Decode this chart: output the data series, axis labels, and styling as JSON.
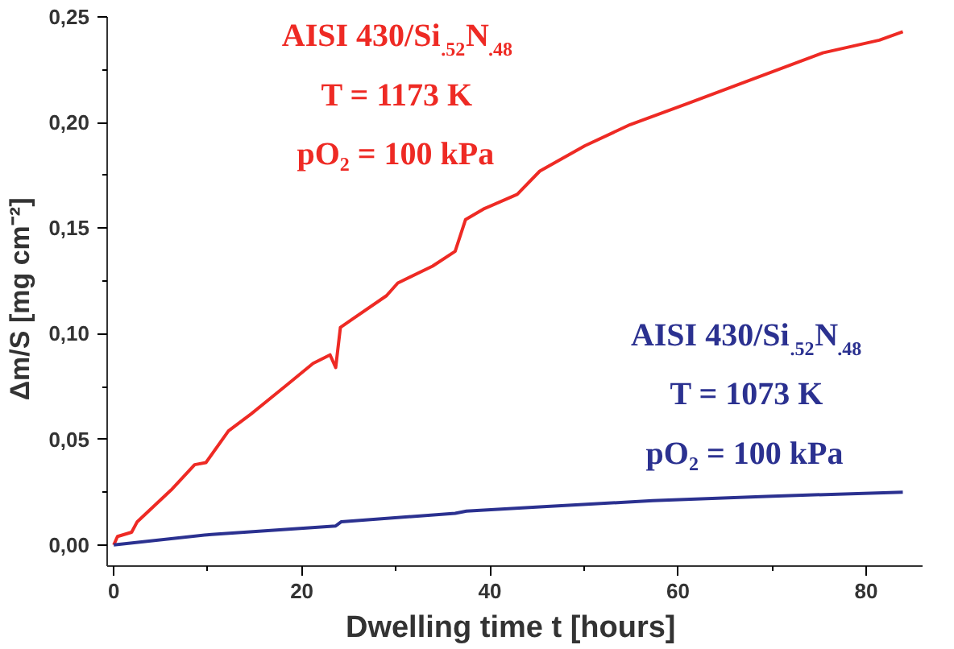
{
  "chart_data": {
    "type": "line",
    "xlabel": "Dwelling time t  [hours]",
    "ylabel": "Δm/S   [mg cm⁻²]",
    "xlim": [
      -0.7,
      86
    ],
    "ylim": [
      -0.01,
      0.25
    ],
    "xticks": [
      0,
      20,
      40,
      60,
      80
    ],
    "yticks": [
      {
        "value": 0,
        "label": "0,00"
      },
      {
        "value": 0.05,
        "label": "0,05"
      },
      {
        "value": 0.1,
        "label": "0,10"
      },
      {
        "value": 0.15,
        "label": "0,15"
      },
      {
        "value": 0.2,
        "label": "0,20"
      },
      {
        "value": 0.25,
        "label": "0,25"
      }
    ],
    "grid": false,
    "marker": "none",
    "line_style": "solid",
    "series": [
      {
        "name": "AISI 430/Si$_{.52}$N$_{.48}$",
        "color": "#ee2a24",
        "x": [
          0,
          0.4,
          1.9,
          2.5,
          6.1,
          8.6,
          9.8,
          12.2,
          14.6,
          18.2,
          21.2,
          23.0,
          23.6,
          24.1,
          25.4,
          29.0,
          30.2,
          33.9,
          36.3,
          37.4,
          39.3,
          42.9,
          45.3,
          50.1,
          54.9,
          61.0,
          69.4,
          75.4,
          81.4,
          83.9
        ],
        "values": [
          0,
          0.004,
          0.006,
          0.011,
          0.026,
          0.038,
          0.039,
          0.054,
          0.062,
          0.075,
          0.086,
          0.09,
          0.084,
          0.103,
          0.107,
          0.118,
          0.124,
          0.132,
          0.139,
          0.154,
          0.159,
          0.166,
          0.177,
          0.189,
          0.199,
          0.209,
          0.223,
          0.233,
          0.239,
          0.243
        ]
      },
      {
        "name": "AISI 430/Si$_{.52}$N$_{.48}$",
        "color": "#2b3190",
        "x": [
          0,
          10.4,
          23.6,
          24.2,
          36.3,
          37.5,
          45.3,
          57.3,
          69.4,
          83.9
        ],
        "values": [
          0,
          0.005,
          0.009,
          0.011,
          0.015,
          0.016,
          0.018,
          0.021,
          0.023,
          0.025
        ]
      }
    ],
    "annotations": [
      "T = 1173 K",
      "pO₂ = 100 kPa",
      "T = 1073 K",
      "pO₂ = 100 kPa"
    ]
  }
}
